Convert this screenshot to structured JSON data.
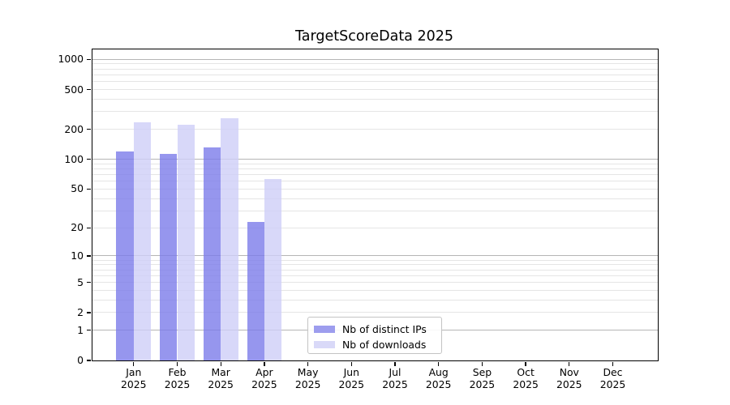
{
  "title": "TargetScoreData 2025",
  "chart_data": {
    "type": "bar",
    "title": "TargetScoreData 2025",
    "x_year": "2025",
    "categories": [
      "Jan",
      "Feb",
      "Mar",
      "Apr",
      "May",
      "Jun",
      "Jul",
      "Aug",
      "Sep",
      "Oct",
      "Nov",
      "Dec"
    ],
    "series": [
      {
        "name": "Nb of distinct IPs",
        "color": "rgba(124,124,234,0.8)",
        "legend_color": "#9d9dee",
        "values": [
          120,
          114,
          132,
          23,
          0,
          0,
          0,
          0,
          0,
          0,
          0,
          0
        ]
      },
      {
        "name": "Nb of downloads",
        "color": "rgba(206,206,248,0.8)",
        "legend_color": "#d9d9f8",
        "values": [
          237,
          223,
          258,
          63,
          0,
          0,
          0,
          0,
          0,
          0,
          0,
          0
        ]
      }
    ],
    "y_axis": {
      "scale": "log1p",
      "ticks": [
        0,
        1,
        2,
        5,
        10,
        20,
        50,
        100,
        200,
        500,
        1000
      ],
      "top_value": 1256,
      "grid_major": [
        1,
        10,
        100,
        1000
      ],
      "grid_minor": [
        2,
        3,
        4,
        5,
        6,
        7,
        8,
        9,
        20,
        30,
        40,
        50,
        60,
        70,
        80,
        90,
        200,
        300,
        400,
        500,
        600,
        700,
        800,
        900
      ]
    },
    "ylim": [
      0,
      1256
    ],
    "grid": true,
    "legend": {
      "position": "lower-center-inside"
    }
  },
  "colors": {
    "axis": "#000000",
    "grid_major": "#b5b5b5",
    "grid_minor": "#e5e5e5",
    "background": "#ffffff"
  }
}
